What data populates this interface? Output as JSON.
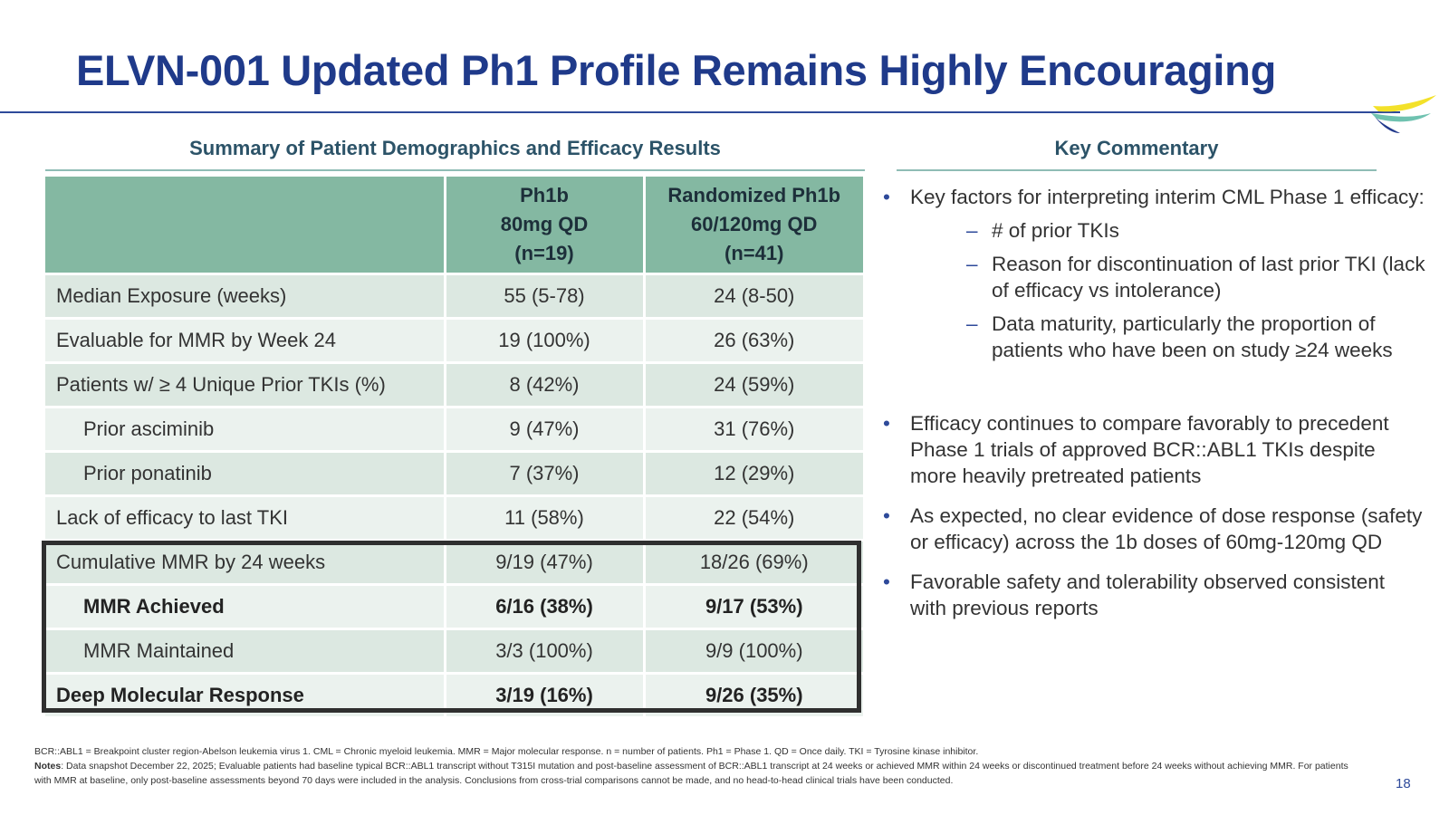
{
  "title": "ELVN-001 Updated Ph1 Profile Remains Highly Encouraging",
  "left_section": {
    "heading": "Summary of Patient Demographics and Efficacy Results",
    "table": {
      "headers": [
        [
          ""
        ],
        [
          "Ph1b",
          "80mg QD",
          "(n=19)"
        ],
        [
          "Randomized Ph1b",
          "60/120mg QD",
          "(n=41)"
        ]
      ],
      "rows": [
        {
          "label": "Median Exposure (weeks)",
          "c1": "55 (5-78)",
          "c2": "24 (8-50)"
        },
        {
          "label": "Evaluable for MMR by Week 24",
          "c1": "19 (100%)",
          "c2": "26 (63%)"
        },
        {
          "label": "Patients w/  ≥ 4 Unique Prior TKIs (%)",
          "c1": "8 (42%)",
          "c2": "24 (59%)"
        },
        {
          "label": "Prior asciminib",
          "c1": "9 (47%)",
          "c2": "31 (76%)"
        },
        {
          "label": "Prior ponatinib",
          "c1": "7 (37%)",
          "c2": "12 (29%)"
        },
        {
          "label": "Lack of efficacy to last TKI",
          "c1": "11 (58%)",
          "c2": "22 (54%)"
        },
        {
          "label": "Cumulative MMR by 24 weeks",
          "c1": "9/19 (47%)",
          "c2": "18/26 (69%)"
        },
        {
          "label": "MMR Achieved",
          "c1": "6/16 (38%)",
          "c2": "9/17 (53%)"
        },
        {
          "label": "MMR Maintained",
          "c1": "3/3 (100%)",
          "c2": "9/9 (100%)"
        },
        {
          "label": "Deep Molecular Response",
          "c1": "3/19 (16%)",
          "c2": "9/26 (35%)"
        }
      ]
    }
  },
  "right_section": {
    "heading": "Key Commentary",
    "bullets": [
      {
        "text": "Key factors for interpreting interim CML Phase 1 efficacy:",
        "subs": [
          "# of prior TKIs",
          "Reason for discontinuation of last prior TKI (lack of efficacy vs intolerance)",
          "Data maturity, particularly the proportion of patients who have been on study ≥24 weeks"
        ]
      },
      {
        "text": "Efficacy continues to compare favorably to precedent Phase 1 trials of approved BCR::ABL1 TKIs despite more heavily pretreated patients"
      },
      {
        "text": "As expected, no clear evidence of dose response (safety or efficacy) across the 1b doses of 60mg-120mg QD"
      },
      {
        "text": "Favorable safety and tolerability observed consistent with previous reports"
      }
    ]
  },
  "footnotes": {
    "abbreviations": "BCR::ABL1 = Breakpoint cluster region-Abelson leukemia virus 1. CML = Chronic myeloid leukemia. MMR = Major molecular response. n = number of patients. Ph1 = Phase 1. QD = Once daily. TKI = Tyrosine kinase inhibitor.",
    "notes_label": "Notes",
    "notes_text": ": Data snapshot December 22, 2025; Evaluable patients had baseline typical BCR::ABL1 transcript without T315I mutation and post-baseline assessment of BCR::ABL1 transcript at 24 weeks or achieved MMR within 24 weeks or discontinued treatment before 24 weeks without achieving MMR. For patients with MMR at baseline, only post-baseline assessments beyond 70 days were included in the analysis. Conclusions from cross-trial comparisons cannot be made, and no head-to-head clinical trials have been conducted."
  },
  "page_number": "18",
  "colors": {
    "title": "#1f3a8a",
    "table_header": "#84b8a2",
    "row_dark": "#dce8e1",
    "row_light": "#ebf2ee",
    "logo_yellow": "#f3e12a",
    "logo_teal": "#6fc2b0",
    "logo_navy": "#233a8c"
  },
  "icons": {
    "logo": "company-logo-swoosh"
  }
}
